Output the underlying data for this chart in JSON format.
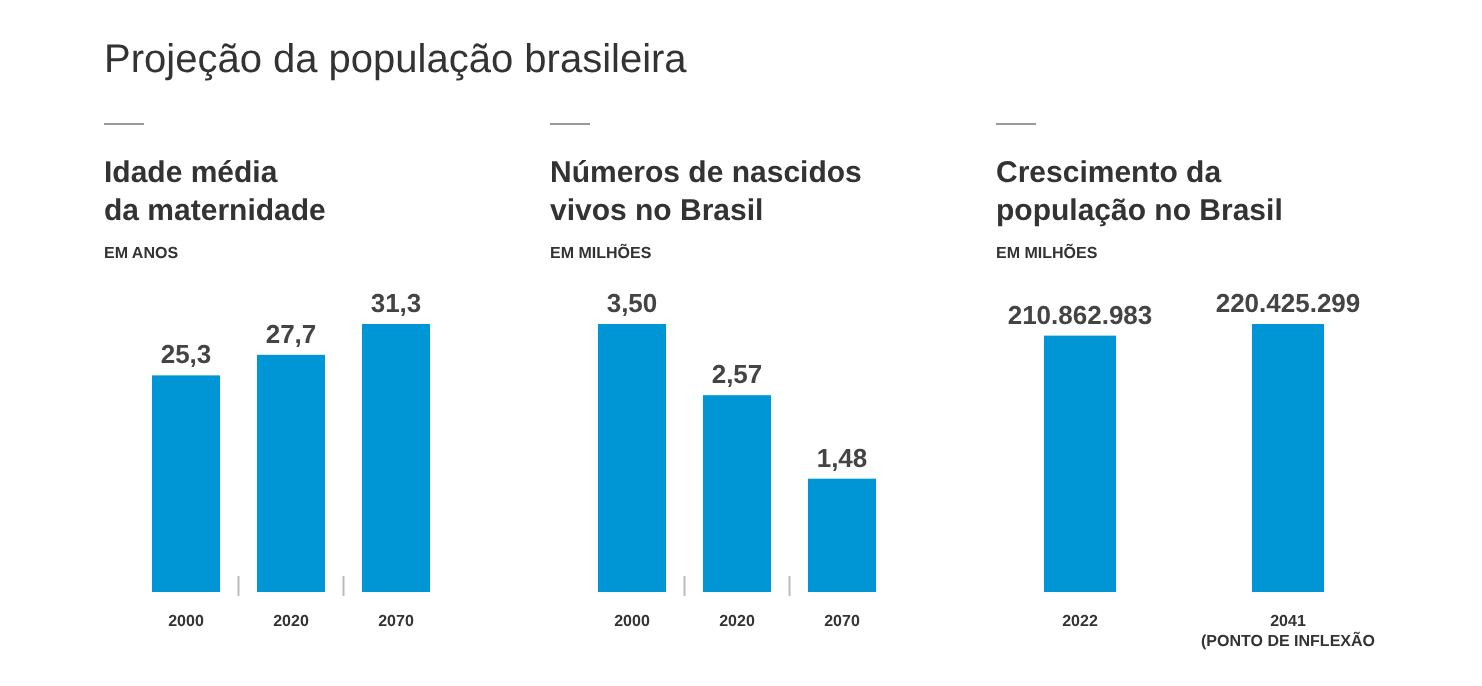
{
  "chart_data": [
    {
      "type": "other",
      "title": "Projeção da população brasileira"
    },
    {
      "type": "bar",
      "title": "Idade média\nda maternidade",
      "subtitle": "EM ANOS",
      "categories": [
        "2000",
        "2020",
        "2070"
      ],
      "values": [
        25.3,
        27.7,
        31.3
      ],
      "value_labels": [
        "25,3",
        "27,7",
        "31,3"
      ],
      "color": "#0096d6"
    },
    {
      "type": "bar",
      "title": "Números de nascidos\nvivos no Brasil",
      "subtitle": "EM MILHÕES",
      "categories": [
        "2000",
        "2020",
        "2070"
      ],
      "values": [
        3.5,
        2.57,
        1.48
      ],
      "value_labels": [
        "3,50",
        "2,57",
        "1,48"
      ],
      "color": "#0096d6"
    },
    {
      "type": "bar",
      "title": "Crescimento da\npopulação no Brasil",
      "subtitle": "EM MILHÕES",
      "categories": [
        "2022",
        "2041\n(PONTO DE INFLEXÃO"
      ],
      "values": [
        210862983,
        220425299
      ],
      "value_labels": [
        "210.862.983",
        "220.425.299"
      ],
      "color": "#0096d6"
    }
  ]
}
